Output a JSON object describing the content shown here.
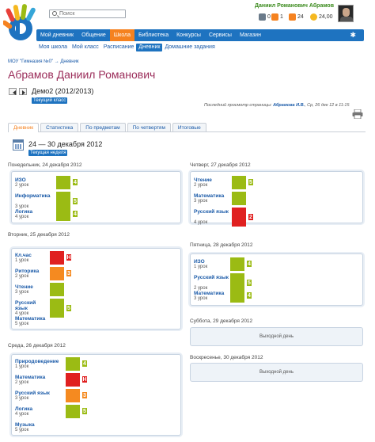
{
  "header": {
    "search_placeholder": "Поиск",
    "user_name": "Даниил Романович Абрамов",
    "stats": [
      {
        "icon": "messages-icon",
        "value": "0",
        "color": "#6a7a8a"
      },
      {
        "icon": "notifications-icon",
        "value": "1",
        "color": "#f58220"
      },
      {
        "icon": "friends-icon",
        "value": "24",
        "color": "#f58220"
      },
      {
        "icon": "coins-icon",
        "value": "24,00",
        "color": "#f5b820"
      }
    ]
  },
  "nav": {
    "items": [
      "Мой дневник",
      "Общение",
      "Школа",
      "Библиотека",
      "Конкурсы",
      "Сервисы",
      "Магазин"
    ],
    "active": "Школа"
  },
  "subnav": {
    "items": [
      "Моя школа",
      "Мой класс",
      "Расписание",
      "Дневник",
      "Домашние задания"
    ],
    "active": "Дневник"
  },
  "breadcrumb": "МОУ \"Гимназия №0\" → Дневник",
  "page_title": "Абрамов Даниил Романович",
  "class_name": "Демо2 (2012/2013)",
  "current_class_badge": "Текущий класс",
  "last_view_label": "Последний просмотр страницы:",
  "last_view_user": "Абрамова И.В.",
  "last_view_date": ", Ср, 26 дек 12 в 11:15",
  "tabs": [
    "Дневник",
    "Статистика",
    "По предметам",
    "По четвертям",
    "Итоговые"
  ],
  "active_tab": "Дневник",
  "week_range": "24 — 30 декабря 2012",
  "current_week_badge": "Текущая неделя",
  "colors": {
    "green": "#9bbb14",
    "orange": "#f58a20",
    "red": "#e02020",
    "accent": "#1e73c0"
  },
  "days": {
    "mon": {
      "label": "Понедельник, 24 декабря 2012",
      "lessons": [
        {
          "subject": "ИЗО",
          "num": "2 урок",
          "mark": "4",
          "color": "green"
        },
        {
          "subject": "Информатика",
          "num": "3 урок",
          "mark": "5",
          "color": "green"
        },
        {
          "subject": "Логика",
          "num": "4 урок",
          "mark": "4",
          "color": "green"
        }
      ]
    },
    "tue": {
      "label": "Вторник, 25 декабря 2012",
      "lessons": [
        {
          "subject": "Кл.час",
          "num": "1 урок",
          "mark": "Н",
          "color": "red"
        },
        {
          "subject": "Риторика",
          "num": "2 урок",
          "mark": "3",
          "color": "orange"
        },
        {
          "subject": "Чтение",
          "num": "3 урок",
          "mark": "",
          "color": "green"
        },
        {
          "subject": "Русский язык",
          "num": "4 урок",
          "mark": "5",
          "color": "green"
        },
        {
          "subject": "Математика",
          "num": "5 урок",
          "mark": "",
          "color": ""
        }
      ]
    },
    "wed": {
      "label": "Среда, 26 декабря 2012",
      "lessons": [
        {
          "subject": "Природоведение",
          "num": "1 урок",
          "mark": "4",
          "color": "green"
        },
        {
          "subject": "Математика",
          "num": "2 урок",
          "mark": "Н",
          "color": "red"
        },
        {
          "subject": "Русский язык",
          "num": "3 урок",
          "mark": "3",
          "color": "orange"
        },
        {
          "subject": "Логика",
          "num": "4 урок",
          "mark": "5",
          "color": "green"
        },
        {
          "subject": "Музыка",
          "num": "5 урок",
          "mark": "",
          "color": ""
        }
      ]
    },
    "thu": {
      "label": "Четверг, 27 декабря 2012",
      "lessons": [
        {
          "subject": "Чтение",
          "num": "2 урок",
          "mark": "5",
          "color": "green"
        },
        {
          "subject": "Математика",
          "num": "3 урок",
          "mark": "",
          "color": "green"
        },
        {
          "subject": "Русский язык",
          "num": "4 урок",
          "mark": "2",
          "color": "red"
        }
      ]
    },
    "fri": {
      "label": "Пятница, 28 декабря 2012",
      "lessons": [
        {
          "subject": "ИЗО",
          "num": "1 урок",
          "mark": "4",
          "color": "green"
        },
        {
          "subject": "Русский язык",
          "num": "2 урок",
          "mark": "5",
          "color": "green"
        },
        {
          "subject": "Математика",
          "num": "3 урок",
          "mark": "4",
          "color": "green"
        }
      ]
    },
    "sat": {
      "label": "Суббота, 29 декабря 2012",
      "empty": "Выходной день"
    },
    "sun": {
      "label": "Воскресенье, 30 декабря 2012",
      "empty": "Выходной день"
    }
  }
}
